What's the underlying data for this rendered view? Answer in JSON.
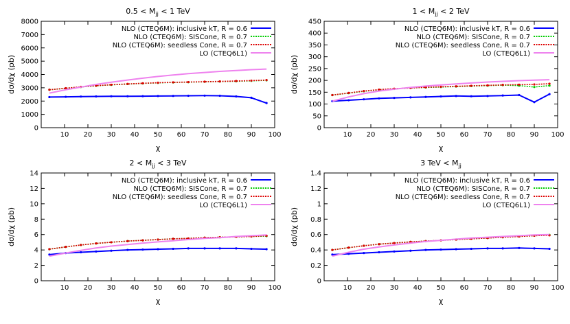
{
  "chart_data": [
    {
      "type": "line",
      "title": "0.5 < M_jj < 1 TeV",
      "xlabel": "χ",
      "ylabel": "dσ/dχ (pb)",
      "xlim": [
        0,
        100
      ],
      "ylim": [
        0,
        8000
      ],
      "xticks": [
        10,
        20,
        30,
        40,
        50,
        60,
        70,
        80,
        90,
        100
      ],
      "yticks": [
        0,
        1000,
        2000,
        3000,
        4000,
        5000,
        6000,
        7000,
        8000
      ],
      "legend_position": "top-right",
      "series": [
        {
          "name": "NLO (CTEQ6M): inclusive kT, R = 0.6",
          "color": "#0000ff",
          "style": "solid",
          "x": [
            3.5,
            10.5,
            17,
            23.5,
            30,
            37,
            43.5,
            50,
            56.5,
            63,
            70,
            76.5,
            83.5,
            90,
            96.5
          ],
          "y": [
            2300,
            2320,
            2340,
            2350,
            2360,
            2360,
            2370,
            2380,
            2390,
            2400,
            2410,
            2400,
            2350,
            2250,
            1850
          ]
        },
        {
          "name": "NLO (CTEQ6M): SISCone, R = 0.7",
          "color": "#00cc00",
          "style": "dotted",
          "x": [
            3.5,
            10.5,
            17,
            23.5,
            30,
            37,
            43.5,
            50,
            56.5,
            63,
            70,
            76.5,
            83.5,
            90,
            96.5
          ],
          "y": [
            2850,
            2960,
            3060,
            3150,
            3220,
            3280,
            3330,
            3370,
            3400,
            3420,
            3450,
            3470,
            3490,
            3520,
            3560
          ]
        },
        {
          "name": "NLO (CTEQ6M): seedless Cone, R = 0.7",
          "color": "#dd0000",
          "style": "dotted",
          "x": [
            3.5,
            10.5,
            17,
            23.5,
            30,
            37,
            43.5,
            50,
            56.5,
            63,
            70,
            76.5,
            83.5,
            90,
            96.5
          ],
          "y": [
            2850,
            2970,
            3070,
            3160,
            3230,
            3290,
            3340,
            3380,
            3410,
            3430,
            3460,
            3480,
            3510,
            3540,
            3580
          ]
        },
        {
          "name": "LO (CTEQ6L1)",
          "color": "#ee82ee",
          "style": "solid",
          "x": [
            3.5,
            10.5,
            17,
            23.5,
            30,
            37,
            43.5,
            50,
            56.5,
            63,
            70,
            76.5,
            83.5,
            90,
            96.5
          ],
          "y": [
            2600,
            2850,
            3050,
            3250,
            3420,
            3580,
            3720,
            3850,
            3960,
            4060,
            4150,
            4230,
            4300,
            4360,
            4410
          ]
        }
      ]
    },
    {
      "type": "line",
      "title": "1 < M_jj < 2 TeV",
      "xlabel": "χ",
      "ylabel": "dσ/dχ (pb)",
      "xlim": [
        0,
        100
      ],
      "ylim": [
        0,
        450
      ],
      "xticks": [
        10,
        20,
        30,
        40,
        50,
        60,
        70,
        80,
        90,
        100
      ],
      "yticks": [
        0,
        50,
        100,
        150,
        200,
        250,
        300,
        350,
        400,
        450
      ],
      "legend_position": "top-right",
      "series": [
        {
          "name": "NLO (CTEQ6M): inclusive kT, R = 0.6",
          "color": "#0000ff",
          "style": "solid",
          "x": [
            3.5,
            10.5,
            17,
            23.5,
            30,
            37,
            43.5,
            50,
            56.5,
            63,
            70,
            76.5,
            83.5,
            90,
            96.5
          ],
          "y": [
            112,
            116,
            120,
            124,
            126,
            128,
            130,
            132,
            134,
            133,
            134,
            136,
            138,
            108,
            142
          ]
        },
        {
          "name": "NLO (CTEQ6M): SISCone, R = 0.7",
          "color": "#00cc00",
          "style": "dotted",
          "x": [
            3.5,
            10.5,
            17,
            23.5,
            30,
            37,
            43.5,
            50,
            56.5,
            63,
            70,
            76.5,
            83.5,
            90,
            96.5
          ],
          "y": [
            138,
            146,
            154,
            160,
            164,
            168,
            170,
            172,
            174,
            176,
            178,
            180,
            178,
            172,
            178
          ]
        },
        {
          "name": "NLO (CTEQ6M): seedless Cone, R = 0.7",
          "color": "#dd0000",
          "style": "dotted",
          "x": [
            3.5,
            10.5,
            17,
            23.5,
            30,
            37,
            43.5,
            50,
            56.5,
            63,
            70,
            76.5,
            83.5,
            90,
            96.5
          ],
          "y": [
            138,
            147,
            155,
            161,
            165,
            168,
            171,
            173,
            175,
            177,
            179,
            181,
            182,
            183,
            186
          ]
        },
        {
          "name": "LO (CTEQ6L1)",
          "color": "#ee82ee",
          "style": "solid",
          "x": [
            3.5,
            10.5,
            17,
            23.5,
            30,
            37,
            43.5,
            50,
            56.5,
            63,
            70,
            76.5,
            83.5,
            90,
            96.5
          ],
          "y": [
            112,
            130,
            144,
            155,
            163,
            170,
            176,
            181,
            185,
            189,
            193,
            196,
            199,
            201,
            203
          ]
        }
      ]
    },
    {
      "type": "line",
      "title": "2 < M_jj < 3 TeV",
      "xlabel": "χ",
      "ylabel": "dσ/dχ (pb)",
      "xlim": [
        0,
        100
      ],
      "ylim": [
        0,
        14
      ],
      "xticks": [
        10,
        20,
        30,
        40,
        50,
        60,
        70,
        80,
        90,
        100
      ],
      "yticks": [
        0,
        2,
        4,
        6,
        8,
        10,
        12,
        14
      ],
      "legend_position": "top-right",
      "series": [
        {
          "name": "NLO (CTEQ6M): inclusive kT, R = 0.6",
          "color": "#0000ff",
          "style": "solid",
          "x": [
            3.5,
            10.5,
            17,
            23.5,
            30,
            37,
            43.5,
            50,
            56.5,
            63,
            70,
            76.5,
            83.5,
            90,
            96.5
          ],
          "y": [
            3.4,
            3.6,
            3.7,
            3.8,
            3.9,
            4.0,
            4.05,
            4.1,
            4.15,
            4.2,
            4.2,
            4.2,
            4.2,
            4.15,
            4.1
          ]
        },
        {
          "name": "NLO (CTEQ6M): SISCone, R = 0.7",
          "color": "#00cc00",
          "style": "dotted",
          "x": [
            3.5,
            10.5,
            17,
            23.5,
            30,
            37,
            43.5,
            50,
            56.5,
            63,
            70,
            76.5,
            83.5,
            90,
            96.5
          ],
          "y": [
            4.1,
            4.4,
            4.65,
            4.85,
            5.0,
            5.15,
            5.25,
            5.35,
            5.45,
            5.5,
            5.6,
            5.65,
            5.7,
            5.75,
            5.8
          ]
        },
        {
          "name": "NLO (CTEQ6M): seedless Cone, R = 0.7",
          "color": "#dd0000",
          "style": "dotted",
          "x": [
            3.5,
            10.5,
            17,
            23.5,
            30,
            37,
            43.5,
            50,
            56.5,
            63,
            70,
            76.5,
            83.5,
            90,
            96.5
          ],
          "y": [
            4.1,
            4.4,
            4.65,
            4.85,
            5.0,
            5.15,
            5.25,
            5.35,
            5.45,
            5.5,
            5.6,
            5.65,
            5.7,
            5.75,
            5.85
          ]
        },
        {
          "name": "LO (CTEQ6L1)",
          "color": "#ee82ee",
          "style": "solid",
          "x": [
            3.5,
            10.5,
            17,
            23.5,
            30,
            37,
            43.5,
            50,
            56.5,
            63,
            70,
            76.5,
            83.5,
            90,
            96.5
          ],
          "y": [
            3.2,
            3.6,
            3.95,
            4.25,
            4.5,
            4.7,
            4.9,
            5.05,
            5.2,
            5.35,
            5.5,
            5.6,
            5.75,
            5.85,
            5.95
          ]
        }
      ]
    },
    {
      "type": "line",
      "title": "3 TeV < M_jj",
      "xlabel": "χ",
      "ylabel": "dσ/dχ (pb)",
      "xlim": [
        0,
        100
      ],
      "ylim": [
        0,
        1.4
      ],
      "xticks": [
        10,
        20,
        30,
        40,
        50,
        60,
        70,
        80,
        90,
        100
      ],
      "yticks": [
        0,
        0.2,
        0.4,
        0.6,
        0.8,
        1,
        1.2,
        1.4
      ],
      "legend_position": "top-right",
      "series": [
        {
          "name": "NLO (CTEQ6M): inclusive kT, R = 0.6",
          "color": "#0000ff",
          "style": "solid",
          "x": [
            3.5,
            10.5,
            17,
            23.5,
            30,
            37,
            43.5,
            50,
            56.5,
            63,
            70,
            76.5,
            83.5,
            90,
            96.5
          ],
          "y": [
            0.34,
            0.35,
            0.36,
            0.37,
            0.38,
            0.39,
            0.4,
            0.405,
            0.41,
            0.415,
            0.42,
            0.42,
            0.425,
            0.42,
            0.415
          ]
        },
        {
          "name": "NLO (CTEQ6M): SISCone, R = 0.7",
          "color": "#00cc00",
          "style": "dotted",
          "x": [
            3.5,
            10.5,
            17,
            23.5,
            30,
            37,
            43.5,
            50,
            56.5,
            63,
            70,
            76.5,
            83.5,
            90,
            96.5
          ],
          "y": [
            0.4,
            0.43,
            0.455,
            0.475,
            0.49,
            0.505,
            0.515,
            0.525,
            0.535,
            0.545,
            0.555,
            0.565,
            0.575,
            0.585,
            0.595
          ]
        },
        {
          "name": "NLO (CTEQ6M): seedless Cone, R = 0.7",
          "color": "#dd0000",
          "style": "dotted",
          "x": [
            3.5,
            10.5,
            17,
            23.5,
            30,
            37,
            43.5,
            50,
            56.5,
            63,
            70,
            76.5,
            83.5,
            90,
            96.5
          ],
          "y": [
            0.4,
            0.43,
            0.455,
            0.475,
            0.49,
            0.505,
            0.515,
            0.525,
            0.535,
            0.545,
            0.555,
            0.565,
            0.575,
            0.585,
            0.59
          ]
        },
        {
          "name": "LO (CTEQ6L1)",
          "color": "#ee82ee",
          "style": "solid",
          "x": [
            3.5,
            10.5,
            17,
            23.5,
            30,
            37,
            43.5,
            50,
            56.5,
            63,
            70,
            76.5,
            83.5,
            90,
            96.5
          ],
          "y": [
            0.32,
            0.37,
            0.41,
            0.44,
            0.465,
            0.49,
            0.51,
            0.525,
            0.54,
            0.555,
            0.565,
            0.575,
            0.585,
            0.595,
            0.6
          ]
        }
      ]
    }
  ]
}
